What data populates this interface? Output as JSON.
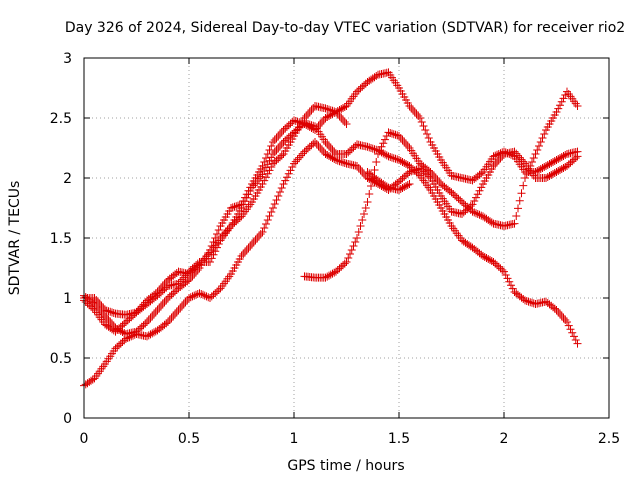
{
  "chart_data": {
    "type": "scatter",
    "title": "Day 326 of 2024, Sidereal Day-to-day VTEC variation (SDTVAR) for receiver rio2",
    "xlabel": "GPS time / hours",
    "ylabel": "SDTVAR / TECUs",
    "xlim": [
      0,
      2.5
    ],
    "ylim": [
      0,
      3
    ],
    "xticks": [
      0,
      0.5,
      1,
      1.5,
      2,
      2.5
    ],
    "xtick_labels": [
      "0",
      "0.5",
      "1",
      "1.5",
      "2",
      "2.5"
    ],
    "yticks": [
      0,
      0.5,
      1,
      1.5,
      2,
      2.5,
      3
    ],
    "ytick_labels": [
      "0",
      "0.5",
      "1",
      "1.5",
      "2",
      "2.5",
      "3"
    ],
    "grid": true,
    "marker": "plus",
    "marker_color": "#dd0000",
    "series": [
      {
        "x": [
          0.0,
          0.05,
          0.1,
          0.15,
          0.2,
          0.25,
          0.3,
          0.35,
          0.4,
          0.45,
          0.5,
          0.55,
          0.6,
          0.65,
          0.7,
          0.75,
          0.8,
          0.85,
          0.9,
          0.95,
          1.0,
          1.05,
          1.1,
          1.15,
          1.2,
          1.25,
          1.3,
          1.35,
          1.4,
          1.45,
          1.5,
          1.55,
          1.6,
          1.65,
          1.7,
          1.75,
          1.8,
          1.85,
          1.9,
          1.95,
          2.0,
          2.05,
          2.1,
          2.15,
          2.2,
          2.25,
          2.3,
          2.35
        ],
        "y": [
          1.02,
          0.95,
          0.85,
          0.75,
          0.7,
          0.72,
          0.8,
          0.9,
          1.0,
          1.08,
          1.15,
          1.25,
          1.4,
          1.6,
          1.75,
          1.78,
          1.95,
          2.1,
          2.3,
          2.4,
          2.48,
          2.45,
          2.4,
          2.5,
          2.55,
          2.6,
          2.72,
          2.8,
          2.86,
          2.88,
          2.75,
          2.6,
          2.5,
          2.3,
          2.15,
          2.02,
          2.0,
          1.98,
          2.05,
          2.18,
          2.22,
          2.18,
          2.05,
          2.05,
          2.1,
          2.15,
          2.2,
          2.22
        ]
      },
      {
        "x": [
          0.0,
          0.05,
          0.1,
          0.15,
          0.2,
          0.25,
          0.3,
          0.35,
          0.4,
          0.45,
          0.5,
          0.55,
          0.6,
          0.65,
          0.7,
          0.75,
          0.8,
          0.85,
          0.9,
          0.95,
          1.0,
          1.05,
          1.1,
          1.15,
          1.2,
          1.25,
          1.3,
          1.35,
          1.4,
          1.45,
          1.5,
          1.55,
          1.6,
          1.65,
          1.7,
          1.75,
          1.8,
          1.85,
          1.9,
          1.95,
          2.0,
          2.05,
          2.1,
          2.15,
          2.2,
          2.25,
          2.3,
          2.35
        ],
        "y": [
          0.27,
          0.33,
          0.45,
          0.58,
          0.66,
          0.7,
          0.68,
          0.73,
          0.8,
          0.9,
          1.0,
          1.04,
          1.0,
          1.08,
          1.2,
          1.35,
          1.45,
          1.55,
          1.75,
          1.95,
          2.12,
          2.22,
          2.3,
          2.2,
          2.15,
          2.12,
          2.1,
          2.0,
          1.95,
          1.9,
          1.97,
          2.05,
          2.08,
          2.0,
          1.85,
          1.72,
          1.7,
          1.78,
          1.95,
          2.1,
          2.2,
          2.22,
          2.12,
          2.0,
          2.0,
          2.05,
          2.1,
          2.18
        ]
      },
      {
        "x": [
          0.0,
          0.05,
          0.1,
          0.15,
          0.2,
          0.25,
          0.3,
          0.35,
          0.4,
          0.45,
          0.5,
          0.55,
          0.6,
          0.65,
          0.7,
          0.75,
          0.8,
          0.85,
          0.9,
          0.95,
          1.0,
          1.05,
          1.1,
          1.15,
          1.2,
          1.25,
          1.3,
          1.35,
          1.4,
          1.45,
          1.5,
          1.55,
          1.6,
          1.65,
          1.7,
          1.75,
          1.8,
          1.85,
          1.9,
          1.95,
          2.0,
          2.05,
          2.1,
          2.15,
          2.2,
          2.25,
          2.3,
          2.35
        ],
        "y": [
          1.0,
          1.0,
          0.9,
          0.87,
          0.86,
          0.88,
          0.98,
          1.05,
          1.15,
          1.22,
          1.2,
          1.28,
          1.38,
          1.5,
          1.6,
          1.75,
          1.92,
          2.03,
          2.2,
          2.3,
          2.38,
          2.46,
          2.43,
          2.3,
          2.2,
          2.2,
          2.28,
          2.26,
          2.23,
          2.18,
          2.15,
          2.1,
          2.02,
          1.9,
          1.75,
          1.6,
          1.48,
          1.42,
          1.35,
          1.3,
          1.22,
          1.05,
          0.98,
          0.95,
          0.97,
          0.9,
          0.8,
          0.62
        ]
      },
      {
        "x": [
          0.0,
          0.05,
          0.1,
          0.15,
          0.2,
          0.25,
          0.3,
          0.35,
          0.4,
          0.45,
          0.5,
          0.55,
          0.6,
          0.65,
          0.7,
          0.75,
          0.8,
          0.85,
          0.9,
          0.95,
          1.0,
          1.05,
          1.1,
          1.15,
          1.2,
          1.25
        ],
        "y": [
          0.98,
          0.9,
          0.78,
          0.72,
          0.8,
          0.88,
          0.95,
          1.02,
          1.1,
          1.12,
          1.22,
          1.3,
          1.3,
          1.48,
          1.6,
          1.68,
          1.8,
          1.95,
          2.12,
          2.2,
          2.35,
          2.5,
          2.6,
          2.58,
          2.55,
          2.45
        ]
      },
      {
        "x": [
          1.05,
          1.1,
          1.15,
          1.2,
          1.25,
          1.3,
          1.35,
          1.4,
          1.45,
          1.5,
          1.55,
          1.6,
          1.65,
          1.7,
          1.75,
          1.8,
          1.85,
          1.9,
          1.95,
          2.0,
          2.05,
          2.1,
          2.15,
          2.2,
          2.25,
          2.3,
          2.35
        ],
        "y": [
          1.18,
          1.17,
          1.17,
          1.22,
          1.3,
          1.5,
          1.8,
          2.2,
          2.38,
          2.35,
          2.25,
          2.12,
          2.05,
          1.95,
          1.88,
          1.8,
          1.72,
          1.68,
          1.62,
          1.6,
          1.62,
          2.0,
          2.2,
          2.4,
          2.55,
          2.72,
          2.6
        ]
      },
      {
        "x": [
          1.35,
          1.4,
          1.45,
          1.5,
          1.55
        ],
        "y": [
          2.05,
          1.98,
          1.92,
          1.9,
          1.95
        ]
      }
    ]
  }
}
